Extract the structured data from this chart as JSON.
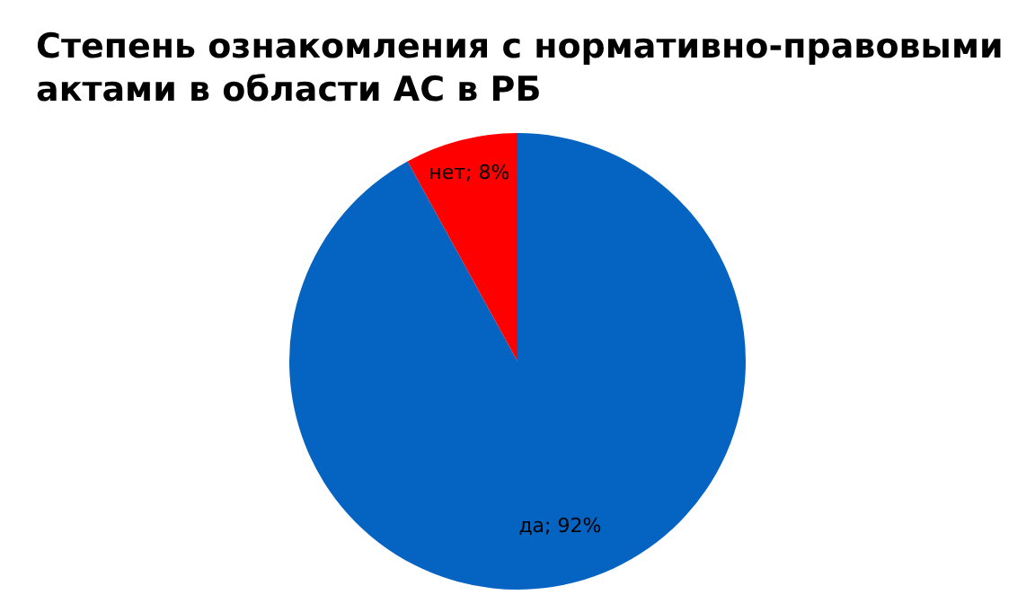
{
  "chart_data": {
    "type": "pie",
    "title": "Степень ознакомления с нормативно-правовыми актами в области АС в РБ",
    "categories": [
      "да",
      "нет"
    ],
    "values": [
      92,
      8
    ],
    "colors": [
      "#0563c1",
      "#ff0000"
    ],
    "value_labels": [
      "92%",
      "8%"
    ]
  }
}
